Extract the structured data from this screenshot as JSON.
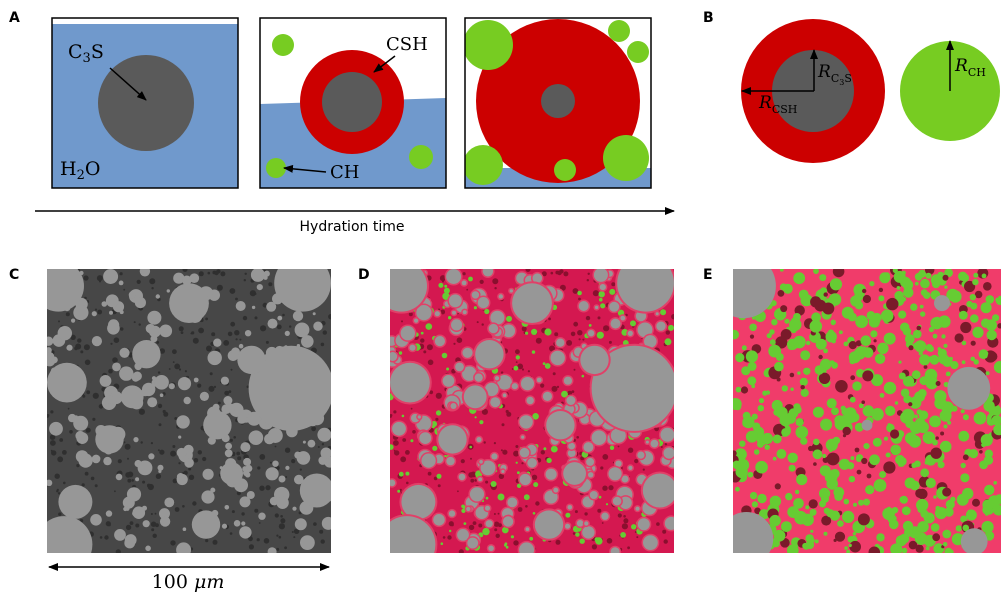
{
  "panels": {
    "A": "A",
    "B": "B",
    "C": "C",
    "D": "D",
    "E": "E"
  },
  "panelA": {
    "c3s_label_main": "C",
    "c3s_label_sub": "3",
    "c3s_label_tail": "S",
    "h2o_label_main": "H",
    "h2o_label_sub": "2",
    "h2o_label_tail": "O",
    "csh_label": "CSH",
    "ch_label": "CH",
    "axis_label": "Hydration time"
  },
  "panelB": {
    "r_c3s_main": "R",
    "r_c3s_sub": "C",
    "r_c3s_sub2": "3",
    "r_c3s_sub3": "S",
    "r_csh_main": "R",
    "r_csh_sub": "CSH",
    "r_ch_main": "R",
    "r_ch_sub": "CH"
  },
  "scale": {
    "value": "100",
    "unit": "μm"
  },
  "colors": {
    "water": "#7099cc",
    "c3s": "#5a5a5a",
    "csh": "#cc0000",
    "ch": "#77cc22",
    "particle_grey": "#979797",
    "micro_bg_C": "#4a4a4a",
    "micro_bg_D": "#d81e55",
    "micro_bg_E": "#f03c6a",
    "micro_green": "#66cc33"
  }
}
